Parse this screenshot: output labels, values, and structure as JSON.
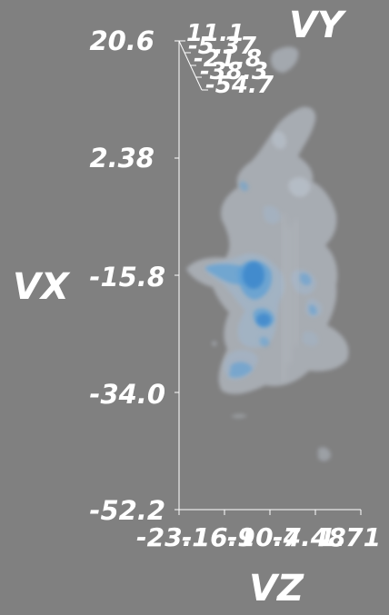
{
  "figure": {
    "background": "#808080",
    "axis_color": "#ffffff",
    "isosurface_colors": {
      "outer": "#c6d0db",
      "middle": "#9fb8d2",
      "inner": "#5c9fd6",
      "core": "#3f88cc"
    }
  },
  "axes": {
    "vx": {
      "label": "VX",
      "ticks": [
        "20.6",
        "2.38",
        "-15.8",
        "-34.0",
        "-52.2"
      ]
    },
    "vy": {
      "label": "VY",
      "ticks": [
        "11.1",
        "-5.37",
        "-21.8",
        "-38.3",
        "-54.7"
      ]
    },
    "vz": {
      "label": "VZ",
      "ticks": [
        "-23.1",
        "-16.9",
        "-10.7",
        "-4.48",
        "1.71"
      ]
    }
  }
}
